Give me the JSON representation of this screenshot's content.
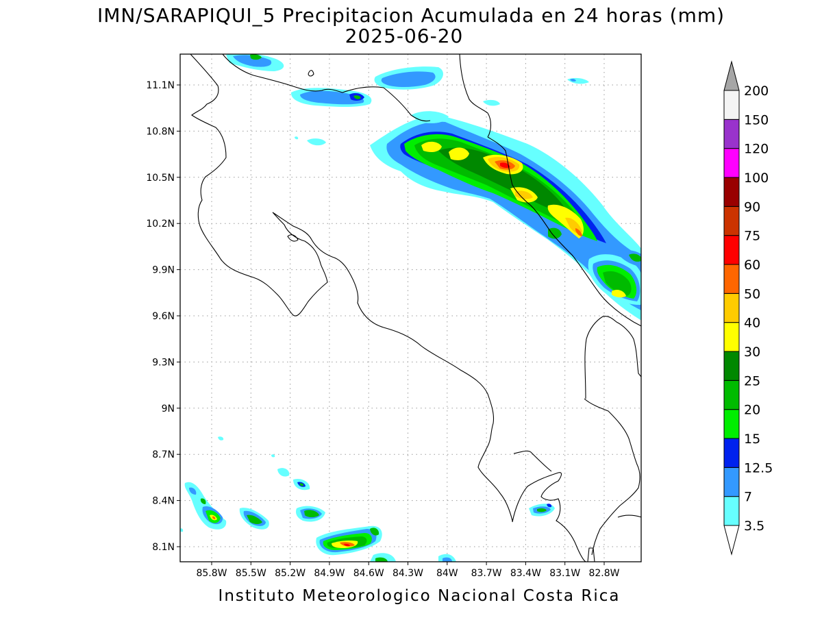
{
  "title": {
    "line1": "IMN/SARAPIQUI_5 Precipitacion Acumulada en 24 horas (mm)",
    "line2": "2025-06-20"
  },
  "footer": "Instituto Meteorologico Nacional Costa Rica",
  "axes": {
    "lon_ticks": [
      "85.8W",
      "85.5W",
      "85.2W",
      "84.9W",
      "84.6W",
      "84.3W",
      "84W",
      "83.7W",
      "83.4W",
      "83.1W",
      "82.8W"
    ],
    "lat_ticks": [
      "11.1N",
      "10.8N",
      "10.5N",
      "10.2N",
      "9.9N",
      "9.6N",
      "9.3N",
      "9N",
      "8.7N",
      "8.4N",
      "8.1N"
    ],
    "lon_range": [
      -86.05,
      -83.05
    ],
    "lat_range": [
      8.0,
      11.3
    ],
    "grid": true
  },
  "colorbar": {
    "levels": [
      "3.5",
      "7",
      "12.5",
      "15",
      "20",
      "25",
      "30",
      "40",
      "50",
      "60",
      "75",
      "90",
      "100",
      "120",
      "150",
      "200"
    ],
    "colors": [
      "#66ffff",
      "#3399ff",
      "#0022ee",
      "#00ee00",
      "#00bb00",
      "#008800",
      "#ffff00",
      "#ffcc00",
      "#ff6600",
      "#ff0000",
      "#cc3300",
      "#990000",
      "#ff00ff",
      "#9933cc",
      "#f4f4f4",
      "#a6a6a6"
    ]
  }
}
